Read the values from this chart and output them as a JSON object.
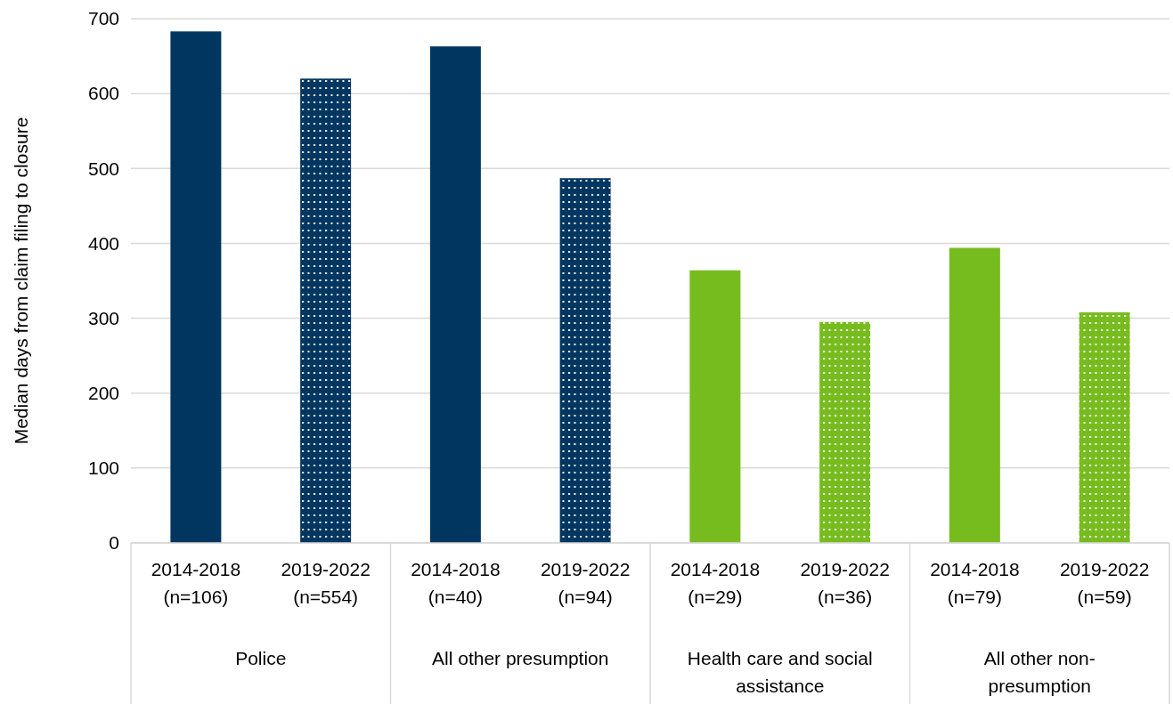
{
  "chart_data": {
    "type": "bar",
    "ylabel": "Median days from claim filing to  closure",
    "categories": [
      "2014-2018\n(n=106)",
      "2019-2022\n(n=554)",
      "2014-2018\n(n=40)",
      "2019-2022\n(n=94)",
      "2014-2018\n(n=29)",
      "2019-2022\n(n=36)",
      "2014-2018\n(n=79)",
      "2019-2022\n(n=59)"
    ],
    "values": [
      683,
      620,
      663,
      487,
      364,
      295,
      394,
      308
    ],
    "colors": [
      "#003660",
      "#003660",
      "#003660",
      "#003660",
      "#77bc1f",
      "#77bc1f",
      "#77bc1f",
      "#77bc1f"
    ],
    "annotations": [
      "Police",
      "All other presumption",
      "Health care and social assistance",
      "All other non-presumption"
    ],
    "ylim": [
      0,
      700
    ],
    "yticks": [
      0,
      100,
      200,
      300,
      400,
      500,
      600,
      700
    ],
    "grid": "y"
  }
}
